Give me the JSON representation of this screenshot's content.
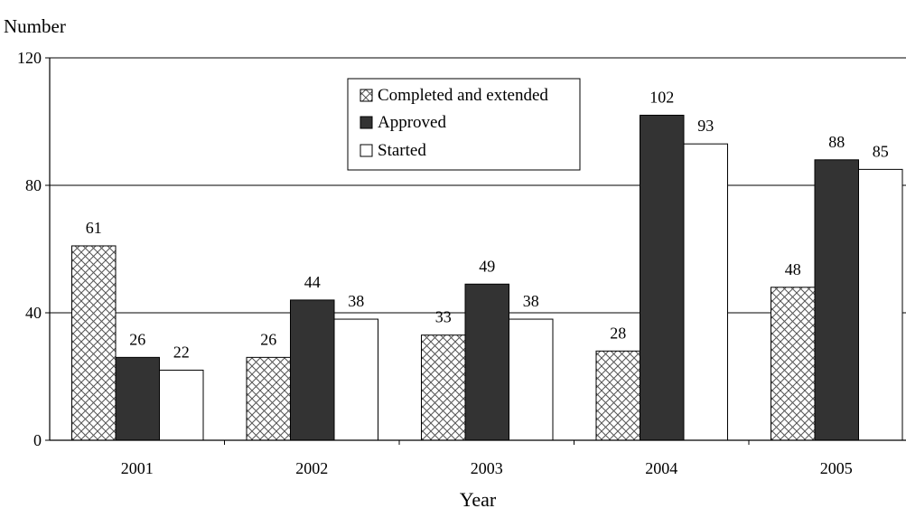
{
  "chart_data": {
    "type": "bar",
    "title": "",
    "ylabel": "Number",
    "xlabel": "Year",
    "categories": [
      "2001",
      "2002",
      "2003",
      "2004",
      "2005"
    ],
    "series": [
      {
        "name": "Completed and extended",
        "values": [
          61,
          26,
          33,
          28,
          48
        ],
        "pattern": "crosshatch",
        "color": "#ffffff"
      },
      {
        "name": "Approved",
        "values": [
          26,
          44,
          49,
          102,
          88
        ],
        "pattern": "solid",
        "color": "#333333"
      },
      {
        "name": "Started",
        "values": [
          22,
          38,
          38,
          93,
          85
        ],
        "pattern": "solid",
        "color": "#ffffff"
      }
    ],
    "ylim": [
      0,
      120
    ],
    "yticks": [
      0,
      40,
      80,
      120
    ],
    "grid": true,
    "legend_position": "top-center",
    "data_labels": true
  }
}
